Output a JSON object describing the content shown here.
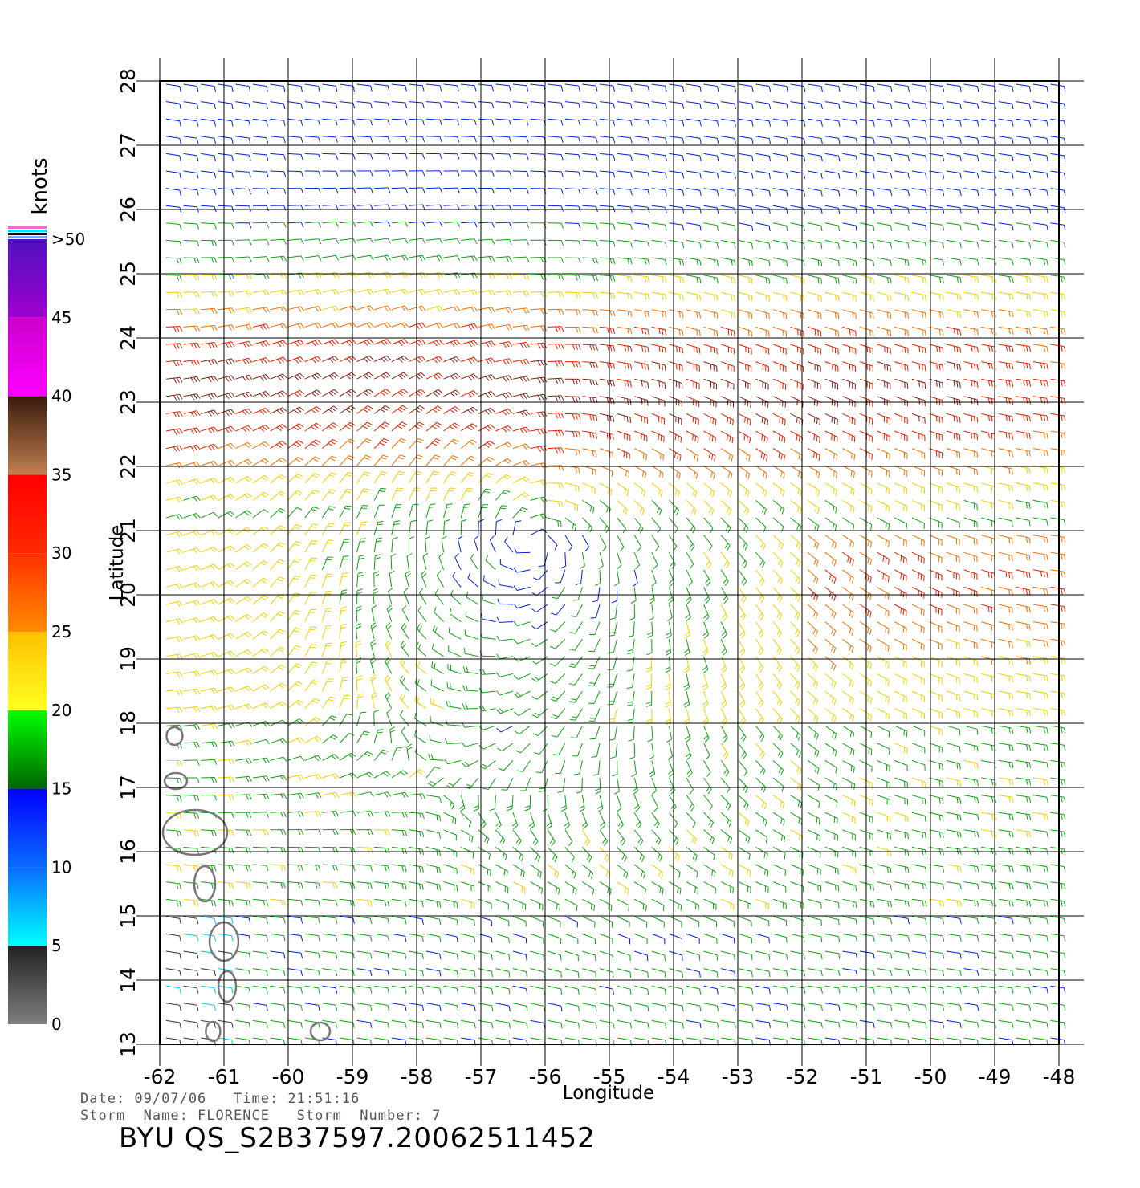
{
  "chart_data": {
    "type": "wind-barb-map",
    "xlabel": "Longitude",
    "ylabel": "Latitude",
    "xlim": [
      -62,
      -48
    ],
    "ylim": [
      13,
      28
    ],
    "x_ticks": [
      "-62",
      "-61",
      "-60",
      "-59",
      "-58",
      "-57",
      "-56",
      "-55",
      "-54",
      "-53",
      "-52",
      "-51",
      "-50",
      "-49",
      "-48"
    ],
    "y_ticks": [
      "13",
      "14",
      "15",
      "16",
      "17",
      "18",
      "19",
      "20",
      "21",
      "22",
      "23",
      "24",
      "25",
      "26",
      "27",
      "28"
    ],
    "grid": true,
    "storm_center": {
      "lon": -56.2,
      "lat": 20.8
    },
    "colorbar": {
      "unit": "knots",
      "labels": [
        "0",
        "5",
        "10",
        "15",
        "20",
        "25",
        "30",
        "35",
        "40",
        "45",
        ">50"
      ],
      "bands": [
        {
          "from": 0,
          "to": 5,
          "top": "#222222",
          "bottom": "#7f7f7f"
        },
        {
          "from": 5,
          "to": 10,
          "top": "#0a6cff",
          "bottom": "#00ffff"
        },
        {
          "from": 10,
          "to": 15,
          "top": "#0000ff",
          "bottom": "#0a6cff"
        },
        {
          "from": 15,
          "to": 20,
          "top": "#00ff00",
          "bottom": "#006400"
        },
        {
          "from": 20,
          "to": 25,
          "top": "#ffc000",
          "bottom": "#ffff20"
        },
        {
          "from": 25,
          "to": 30,
          "top": "#ff3000",
          "bottom": "#ff8c00"
        },
        {
          "from": 30,
          "to": 35,
          "top": "#ff0000",
          "bottom": "#ff2a00"
        },
        {
          "from": 35,
          "to": 40,
          "top": "#3a1a0a",
          "bottom": "#c08050"
        },
        {
          "from": 40,
          "to": 45,
          "top": "#cc00cc",
          "bottom": "#ff00ff"
        },
        {
          "from": 45,
          "to": 50,
          "top": "#5010c0",
          "bottom": "#a000d0"
        }
      ]
    },
    "islands": [
      {
        "lon": -61.77,
        "lat": 17.8,
        "rx": 10,
        "ry": 11
      },
      {
        "lon": -61.75,
        "lat": 17.1,
        "rx": 14,
        "ry": 10
      },
      {
        "lon": -61.45,
        "lat": 16.3,
        "rx": 40,
        "ry": 28
      },
      {
        "lon": -61.3,
        "lat": 15.5,
        "rx": 13,
        "ry": 22
      },
      {
        "lon": -61.0,
        "lat": 14.6,
        "rx": 18,
        "ry": 24
      },
      {
        "lon": -60.95,
        "lat": 13.9,
        "rx": 11,
        "ry": 19
      },
      {
        "lon": -61.17,
        "lat": 13.2,
        "rx": 9,
        "ry": 12
      },
      {
        "lon": -59.5,
        "lat": 13.2,
        "rx": 12,
        "ry": 11
      }
    ]
  },
  "footer": {
    "line1": "Date: 09/07/06   Time: 21:51:16",
    "line2": "Storm  Name: FLORENCE   Storm  Number: 7",
    "product": "BYU  QS_S2B37597.20062511452"
  },
  "colors": {
    "grid": "#000000",
    "island": "#777777"
  }
}
